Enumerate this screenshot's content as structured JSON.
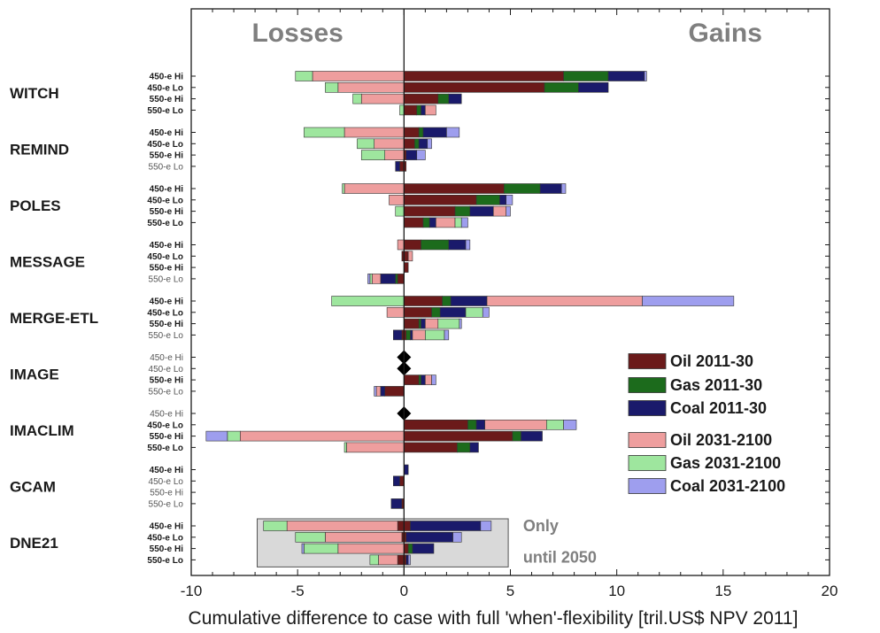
{
  "chart_data": {
    "type": "bar",
    "orientation": "horizontal-stacked-diverging",
    "sections": {
      "left": "Losses",
      "right": "Gains"
    },
    "xlabel": "Cumulative difference to case with full 'when'-flexibility [tril.US$ NPV 2011]",
    "xlim": [
      -10,
      20
    ],
    "xticks": [
      "-10",
      "-5",
      "0",
      "5",
      "10",
      "15",
      "20"
    ],
    "legend": {
      "placement": "right",
      "items": [
        {
          "label": "Oil 2011-30",
          "color": "#6b1a1a"
        },
        {
          "label": "Gas 2011-30",
          "color": "#1c6b1c"
        },
        {
          "label": "Coal 2011-30",
          "color": "#1a1a6b"
        },
        {
          "label": "Oil 2031-2100",
          "color": "#ee9e9e"
        },
        {
          "label": "Gas 2031-2100",
          "color": "#9ee69e"
        },
        {
          "label": "Coal 2031-2100",
          "color": "#9e9eee"
        }
      ]
    },
    "note": [
      "Only",
      "until 2050"
    ],
    "models": [
      {
        "name": "WITCH",
        "rows": [
          {
            "label": "450-e Hi",
            "bold": true,
            "pos": [
              7.5,
              2.1,
              1.7,
              0,
              0,
              0.1
            ],
            "neg": [
              0,
              0,
              0,
              -4.3,
              -0.8,
              0
            ]
          },
          {
            "label": "450-e Lo",
            "bold": true,
            "pos": [
              6.6,
              1.6,
              1.4,
              0,
              0,
              0
            ],
            "neg": [
              0,
              0,
              0,
              -3.1,
              -0.6,
              0
            ]
          },
          {
            "label": "550-e Hi",
            "bold": true,
            "pos": [
              1.6,
              0.5,
              0.6,
              0,
              0,
              0
            ],
            "neg": [
              0,
              0,
              0,
              -2.0,
              -0.4,
              0
            ]
          },
          {
            "label": "550-e Lo",
            "bold": true,
            "pos": [
              0.6,
              0.2,
              0.2,
              0.5,
              0,
              0
            ],
            "neg": [
              0,
              0,
              0,
              0,
              -0.2,
              0
            ]
          }
        ]
      },
      {
        "name": "REMIND",
        "rows": [
          {
            "label": "450-e Hi",
            "bold": true,
            "pos": [
              0.7,
              0.2,
              1.1,
              0,
              0,
              0.6
            ],
            "neg": [
              0,
              0,
              0,
              -2.8,
              -1.9,
              0
            ]
          },
          {
            "label": "450-e Lo",
            "bold": true,
            "pos": [
              0.5,
              0.2,
              0.4,
              0,
              0,
              0.2
            ],
            "neg": [
              0,
              0,
              0,
              -1.4,
              -0.8,
              0
            ]
          },
          {
            "label": "550-e Hi",
            "bold": true,
            "pos": [
              0.1,
              0,
              0.5,
              0,
              0,
              0.4
            ],
            "neg": [
              0,
              0,
              0,
              -0.9,
              -1.1,
              0
            ]
          },
          {
            "label": "550-e Lo",
            "bold": false,
            "pos": [
              0.1,
              0,
              0,
              0,
              0,
              0
            ],
            "neg": [
              -0.2,
              0,
              -0.2,
              0,
              0,
              0
            ]
          }
        ]
      },
      {
        "name": "POLES",
        "rows": [
          {
            "label": "450-e Hi",
            "bold": true,
            "pos": [
              4.7,
              1.7,
              1.0,
              0,
              0,
              0.2
            ],
            "neg": [
              0,
              0,
              0,
              -2.8,
              -0.1,
              0
            ]
          },
          {
            "label": "450-e Lo",
            "bold": true,
            "pos": [
              3.4,
              1.1,
              0.3,
              0,
              0,
              0.3
            ],
            "neg": [
              0,
              0,
              0,
              -0.7,
              0,
              0
            ]
          },
          {
            "label": "550-e Hi",
            "bold": true,
            "pos": [
              2.4,
              0.7,
              1.1,
              0.6,
              0,
              0.2
            ],
            "neg": [
              0,
              0,
              0,
              0,
              -0.4,
              0
            ]
          },
          {
            "label": "550-e Lo",
            "bold": true,
            "pos": [
              0.9,
              0.3,
              0.3,
              0.9,
              0.3,
              0.3
            ],
            "neg": [
              0,
              0,
              0,
              0,
              0,
              0
            ]
          }
        ]
      },
      {
        "name": "MESSAGE",
        "rows": [
          {
            "label": "450-e Hi",
            "bold": true,
            "pos": [
              0.8,
              1.3,
              0.8,
              0,
              0,
              0.2
            ],
            "neg": [
              0,
              0,
              0,
              -0.3,
              0,
              0
            ]
          },
          {
            "label": "450-e Lo",
            "bold": true,
            "pos": [
              0.2,
              0,
              0,
              0.2,
              0,
              0
            ],
            "neg": [
              -0.1,
              0,
              0,
              0,
              0,
              0
            ]
          },
          {
            "label": "550-e Hi",
            "bold": true,
            "pos": [
              0.2,
              0,
              0,
              0,
              0,
              0
            ],
            "neg": [
              0,
              0,
              0,
              0,
              0,
              0
            ]
          },
          {
            "label": "550-e Lo",
            "bold": false,
            "pos": [
              0,
              0,
              0,
              0,
              0,
              0
            ],
            "neg": [
              -0.3,
              -0.1,
              -0.7,
              -0.4,
              -0.1,
              -0.1
            ]
          }
        ]
      },
      {
        "name": "MERGE-ETL",
        "rows": [
          {
            "label": "450-e Hi",
            "bold": true,
            "pos": [
              1.8,
              0.4,
              1.7,
              7.3,
              0,
              4.3
            ],
            "neg": [
              0,
              0,
              0,
              0,
              -3.4,
              0
            ]
          },
          {
            "label": "450-e Lo",
            "bold": true,
            "pos": [
              1.3,
              0.4,
              1.2,
              0,
              0.8,
              0.3
            ],
            "neg": [
              0,
              0,
              0,
              -0.8,
              0,
              0
            ]
          },
          {
            "label": "550-e Hi",
            "bold": true,
            "pos": [
              0.7,
              0.1,
              0.2,
              0.6,
              1.0,
              0.1
            ],
            "neg": [
              0,
              0,
              0,
              0,
              0,
              0
            ]
          },
          {
            "label": "550-e Lo",
            "bold": false,
            "pos": [
              0.1,
              0.2,
              0.1,
              0.6,
              0.9,
              0.2
            ],
            "neg": [
              -0.1,
              0,
              -0.4,
              0,
              0,
              0
            ]
          }
        ]
      },
      {
        "name": "IMAGE",
        "rows": [
          {
            "label": "450-e Hi",
            "bold": false,
            "pos": [
              0,
              0,
              0,
              0,
              0,
              0
            ],
            "neg": [
              0,
              0,
              0,
              0,
              0,
              0
            ],
            "marker": true
          },
          {
            "label": "450-e Lo",
            "bold": false,
            "pos": [
              0,
              0,
              0,
              0,
              0,
              0
            ],
            "neg": [
              0,
              0,
              0,
              0,
              0,
              0
            ],
            "marker": true
          },
          {
            "label": "550-e Hi",
            "bold": true,
            "pos": [
              0.7,
              0.1,
              0.2,
              0.3,
              0,
              0.2
            ],
            "neg": [
              0,
              0,
              0,
              0,
              0,
              0
            ]
          },
          {
            "label": "550-e Lo",
            "bold": false,
            "pos": [
              0,
              0,
              0,
              0,
              0,
              0
            ],
            "neg": [
              -0.9,
              0,
              -0.2,
              -0.2,
              0,
              -0.1
            ]
          }
        ]
      },
      {
        "name": "IMACLIM",
        "rows": [
          {
            "label": "450-e Hi",
            "bold": false,
            "pos": [
              0,
              0,
              0,
              0,
              0,
              0
            ],
            "neg": [
              0,
              0,
              0,
              0,
              0,
              0
            ],
            "marker": true
          },
          {
            "label": "450-e Lo",
            "bold": true,
            "pos": [
              3.0,
              0.4,
              0.4,
              2.9,
              0.8,
              0.6
            ],
            "neg": [
              0,
              0,
              0,
              0,
              0,
              0
            ]
          },
          {
            "label": "550-e Hi",
            "bold": true,
            "pos": [
              5.1,
              0.4,
              1.0,
              0,
              0,
              0
            ],
            "neg": [
              0,
              0,
              0,
              -7.7,
              -0.6,
              -1.0
            ]
          },
          {
            "label": "550-e Lo",
            "bold": true,
            "pos": [
              2.5,
              0.6,
              0.4,
              0,
              0,
              0
            ],
            "neg": [
              0,
              0,
              0,
              -2.7,
              -0.1,
              0
            ]
          }
        ]
      },
      {
        "name": "GCAM",
        "rows": [
          {
            "label": "450-e Hi",
            "bold": true,
            "pos": [
              0,
              0,
              0.2,
              0,
              0,
              0
            ],
            "neg": [
              0,
              0,
              0,
              0,
              0,
              0
            ]
          },
          {
            "label": "450-e Lo",
            "bold": false,
            "pos": [
              0,
              0,
              0,
              0,
              0,
              0
            ],
            "neg": [
              -0.2,
              0,
              -0.3,
              0,
              0,
              0
            ]
          },
          {
            "label": "550-e Hi",
            "bold": false,
            "pos": [
              0,
              0,
              0,
              0,
              0,
              0
            ],
            "neg": [
              0,
              0,
              0,
              0,
              0,
              0
            ]
          },
          {
            "label": "550-e Lo",
            "bold": false,
            "pos": [
              0,
              0,
              0,
              0,
              0,
              0
            ],
            "neg": [
              -0.1,
              0,
              -0.5,
              0,
              0,
              0
            ]
          }
        ]
      },
      {
        "name": "DNE21",
        "rows": [
          {
            "label": "450-e Hi",
            "bold": true,
            "pos": [
              0.3,
              0,
              3.3,
              0,
              0,
              0.5
            ],
            "neg": [
              -0.3,
              0,
              0,
              -5.2,
              -1.1,
              0
            ]
          },
          {
            "label": "450-e Lo",
            "bold": true,
            "pos": [
              0.1,
              0,
              2.2,
              0,
              0,
              0.4
            ],
            "neg": [
              -0.1,
              0,
              0,
              -3.6,
              -1.4,
              0
            ]
          },
          {
            "label": "550-e Hi",
            "bold": true,
            "pos": [
              0.2,
              0.2,
              1.0,
              0,
              0,
              0
            ],
            "neg": [
              0,
              0,
              0,
              -3.1,
              -1.6,
              -0.1
            ]
          },
          {
            "label": "550-e Lo",
            "bold": true,
            "pos": [
              0.1,
              0,
              0.1,
              0,
              0,
              0.1
            ],
            "neg": [
              -0.3,
              0,
              0,
              -0.9,
              -0.4,
              0
            ]
          }
        ]
      }
    ]
  }
}
